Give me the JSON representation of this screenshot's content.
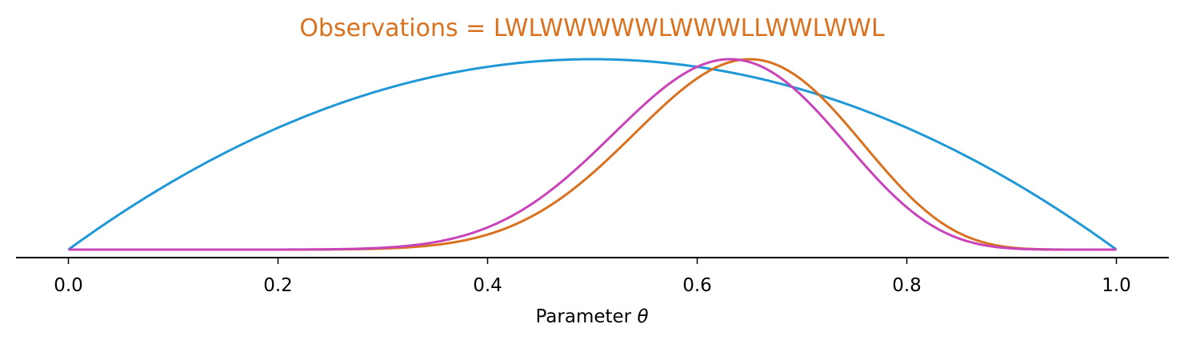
{
  "chart_data": {
    "type": "line",
    "title": "Observations = LWLWWWWWLWWWLLWWLWWL",
    "title_color": "#d9711f",
    "xlabel": "Parameter θ",
    "ylabel": "",
    "xlim": [
      -0.05,
      1.05
    ],
    "xticks": [
      0.0,
      0.2,
      0.4,
      0.6,
      0.8,
      1.0
    ],
    "xtick_labels": [
      "0.0",
      "0.2",
      "0.4",
      "0.6",
      "0.8",
      "1.0"
    ],
    "y_axis_visible": false,
    "grid": false,
    "series": [
      {
        "color": "#2098d6",
        "curve": "beta",
        "a": 2,
        "b": 2,
        "peak_normalized": true
      },
      {
        "color": "#d9711f",
        "curve": "beta",
        "a": 14,
        "b": 8,
        "peak_normalized": true
      },
      {
        "color": "#c944b8",
        "curve": "beta",
        "a": 13.5,
        "b": 8.3,
        "peak_normalized": true
      }
    ]
  }
}
